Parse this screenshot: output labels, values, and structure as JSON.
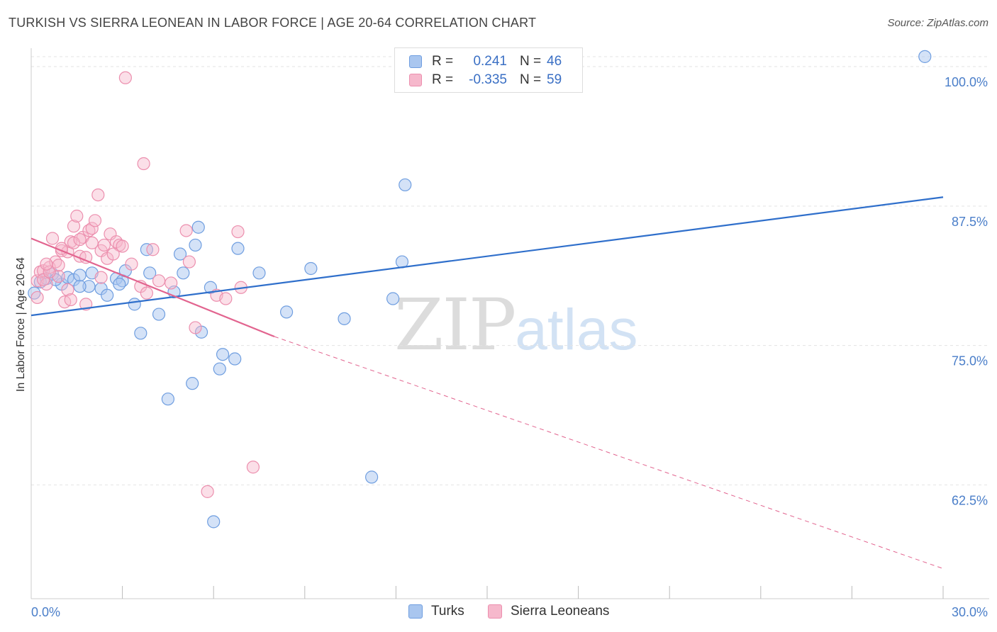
{
  "header": {
    "title": "TURKISH VS SIERRA LEONEAN IN LABOR FORCE | AGE 20-64 CORRELATION CHART",
    "source": "Source: ZipAtlas.com"
  },
  "legend": {
    "turks": {
      "r_label": "R =",
      "r_value": "0.241",
      "n_label": "N =",
      "n_value": "46"
    },
    "sierra": {
      "r_label": "R =",
      "r_value": "-0.335",
      "n_label": "N =",
      "n_value": "59"
    }
  },
  "bottom_legend": {
    "turks": "Turks",
    "sierra": "Sierra Leoneans"
  },
  "watermark": {
    "zip": "ZIP",
    "atlas": "atlas"
  },
  "colors": {
    "turks_fill": "#a9c6ef",
    "turks_stroke": "#6f9ee0",
    "turks_line": "#2f6fcb",
    "sierra_fill": "#f6b8cc",
    "sierra_stroke": "#ec8fae",
    "sierra_line": "#e2648f",
    "grid": "#e3e3e3",
    "axis_text": "#4a7ec9"
  },
  "chart_data": {
    "type": "scatter",
    "title": "TURKISH VS SIERRA LEONEAN IN LABOR FORCE | AGE 20-64 CORRELATION CHART",
    "xlabel": "",
    "ylabel": "In Labor Force | Age 20-64",
    "xlim": [
      0,
      30
    ],
    "ylim": [
      52.3,
      101.4
    ],
    "x_ticks": [
      "0.0%",
      "30.0%"
    ],
    "y_ticks": [
      {
        "value": 100.0,
        "label": "100.0%"
      },
      {
        "value": 87.5,
        "label": "87.5%"
      },
      {
        "value": 75.0,
        "label": "75.0%"
      },
      {
        "value": 62.5,
        "label": "62.5%"
      }
    ],
    "x_minor_ticks": [
      3,
      6,
      9,
      12,
      15,
      18,
      21,
      24,
      27,
      30
    ],
    "series": [
      {
        "name": "Turks",
        "points": [
          [
            0.1,
            79.7
          ],
          [
            0.3,
            80.7
          ],
          [
            0.5,
            81.0
          ],
          [
            0.7,
            81.4
          ],
          [
            1.0,
            80.5
          ],
          [
            1.2,
            81.1
          ],
          [
            1.4,
            80.9
          ],
          [
            1.6,
            81.3
          ],
          [
            1.9,
            80.3
          ],
          [
            2.0,
            81.5
          ],
          [
            2.3,
            80.1
          ],
          [
            2.5,
            79.5
          ],
          [
            2.8,
            81.0
          ],
          [
            3.0,
            80.8
          ],
          [
            3.1,
            81.7
          ],
          [
            3.4,
            78.7
          ],
          [
            3.6,
            76.1
          ],
          [
            3.8,
            83.6
          ],
          [
            3.9,
            81.5
          ],
          [
            4.2,
            77.8
          ],
          [
            4.5,
            70.2
          ],
          [
            4.7,
            79.8
          ],
          [
            4.9,
            83.2
          ],
          [
            5.0,
            81.5
          ],
          [
            5.3,
            71.6
          ],
          [
            5.4,
            84.0
          ],
          [
            5.5,
            85.6
          ],
          [
            5.6,
            76.2
          ],
          [
            5.9,
            80.2
          ],
          [
            6.0,
            59.2
          ],
          [
            6.2,
            72.9
          ],
          [
            6.3,
            74.2
          ],
          [
            6.7,
            73.8
          ],
          [
            6.8,
            83.7
          ],
          [
            7.5,
            81.5
          ],
          [
            8.4,
            78.0
          ],
          [
            9.2,
            81.9
          ],
          [
            10.3,
            77.4
          ],
          [
            11.2,
            63.2
          ],
          [
            11.9,
            79.2
          ],
          [
            12.2,
            82.5
          ],
          [
            12.3,
            89.4
          ],
          [
            29.4,
            100.9
          ],
          [
            0.8,
            80.9
          ],
          [
            1.6,
            80.3
          ],
          [
            2.9,
            80.5
          ]
        ],
        "trend": {
          "x": [
            0,
            30
          ],
          "y": [
            77.7,
            88.3
          ]
        }
      },
      {
        "name": "Sierra Leoneans",
        "points": [
          [
            0.2,
            80.8
          ],
          [
            0.3,
            81.6
          ],
          [
            0.4,
            81.7
          ],
          [
            0.5,
            80.5
          ],
          [
            0.6,
            82.0
          ],
          [
            0.7,
            84.6
          ],
          [
            0.8,
            82.5
          ],
          [
            0.9,
            81.2
          ],
          [
            1.0,
            83.5
          ],
          [
            1.1,
            78.9
          ],
          [
            1.2,
            83.4
          ],
          [
            1.3,
            84.3
          ],
          [
            1.4,
            85.7
          ],
          [
            1.5,
            86.6
          ],
          [
            1.6,
            83.0
          ],
          [
            1.7,
            84.7
          ],
          [
            1.8,
            82.9
          ],
          [
            1.9,
            85.3
          ],
          [
            2.0,
            85.5
          ],
          [
            2.1,
            86.2
          ],
          [
            2.2,
            88.5
          ],
          [
            2.3,
            83.5
          ],
          [
            2.4,
            84.0
          ],
          [
            2.5,
            82.8
          ],
          [
            2.6,
            85.0
          ],
          [
            2.8,
            84.3
          ],
          [
            2.9,
            84.0
          ],
          [
            3.0,
            83.9
          ],
          [
            3.1,
            99.0
          ],
          [
            3.3,
            82.3
          ],
          [
            3.6,
            80.3
          ],
          [
            3.7,
            91.3
          ],
          [
            3.8,
            79.7
          ],
          [
            4.0,
            83.6
          ],
          [
            4.2,
            80.8
          ],
          [
            4.6,
            80.6
          ],
          [
            5.1,
            85.3
          ],
          [
            5.2,
            82.5
          ],
          [
            5.4,
            76.6
          ],
          [
            5.8,
            61.9
          ],
          [
            6.1,
            79.5
          ],
          [
            6.4,
            79.2
          ],
          [
            6.8,
            85.2
          ],
          [
            6.9,
            80.2
          ],
          [
            7.3,
            64.1
          ],
          [
            0.2,
            79.3
          ],
          [
            0.4,
            80.9
          ],
          [
            0.6,
            81.6
          ],
          [
            0.9,
            82.2
          ],
          [
            1.2,
            80.0
          ],
          [
            1.4,
            84.2
          ],
          [
            1.6,
            84.5
          ],
          [
            2.0,
            84.2
          ],
          [
            2.3,
            81.1
          ],
          [
            2.7,
            83.2
          ],
          [
            1.8,
            78.7
          ],
          [
            1.0,
            83.7
          ],
          [
            1.3,
            79.1
          ],
          [
            0.5,
            82.3
          ]
        ],
        "trend_solid": {
          "x": [
            0,
            8
          ],
          "y": [
            84.6,
            75.8
          ]
        },
        "trend_dashed": {
          "x": [
            8,
            30
          ],
          "y": [
            75.8,
            55.0
          ]
        }
      }
    ]
  }
}
